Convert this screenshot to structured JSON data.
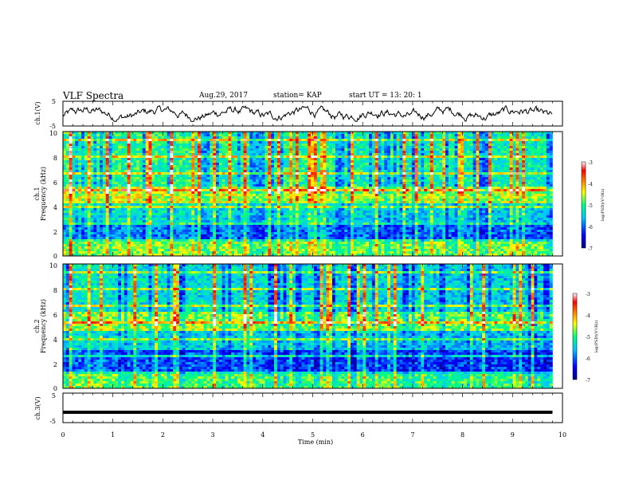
{
  "header": {
    "title": "VLF Spectra",
    "date": "Aug.29, 2017",
    "station": "station= KAP",
    "start": "start  UT =   13: 20: 1"
  },
  "chart_data": [
    {
      "type": "line",
      "ylabel": "ch.1(V)",
      "ylim": [
        -5,
        5
      ],
      "yticks": [
        "5",
        "-5"
      ],
      "xlim": [
        0,
        10
      ],
      "note_series": "noisy waveform around 0 V, amplitude roughly ±3 V"
    },
    {
      "type": "heatmap",
      "ylabel_top": "ch.1",
      "ylabel": "Frequency (kHz)",
      "ylim": [
        0,
        10
      ],
      "yticks": [
        "0",
        "2",
        "4",
        "6",
        "8",
        "10"
      ],
      "xlim": [
        0,
        10
      ],
      "colorbar": {
        "label": "log(PSD)(V²/Hz)",
        "range": [
          -7,
          -3
        ],
        "ticks": [
          "-3",
          "-4",
          "-5",
          "-6",
          "-7"
        ],
        "colors": [
          "#00008b",
          "#0000ff",
          "#00c8ff",
          "#00ff80",
          "#ffff00",
          "#ff8000",
          "#ff0000",
          "#ffffff"
        ]
      },
      "spectral_bands_khz": [
        {
          "low": 0,
          "high": 1.2,
          "level": -4.6
        },
        {
          "low": 1.2,
          "high": 2.6,
          "level": -5.8
        },
        {
          "low": 2.6,
          "high": 4.2,
          "level": -5.3
        },
        {
          "low": 4.2,
          "high": 5.6,
          "level": -4.4
        },
        {
          "low": 5.6,
          "high": 10,
          "level": -5.0
        }
      ]
    },
    {
      "type": "heatmap",
      "ylabel_top": "ch.2",
      "ylabel": "Frequency (kHz)",
      "ylim": [
        0,
        10
      ],
      "yticks": [
        "0",
        "2",
        "4",
        "6",
        "8",
        "10"
      ],
      "xlim": [
        0,
        10
      ],
      "colorbar": {
        "label": "log(PSD)(V²/Hz)",
        "range": [
          -7,
          -3
        ],
        "ticks": [
          "-3",
          "-4",
          "-5",
          "-6",
          "-7"
        ],
        "colors": [
          "#00008b",
          "#0000ff",
          "#00c8ff",
          "#00ff80",
          "#ffff00",
          "#ff8000",
          "#ff0000",
          "#ffffff"
        ]
      },
      "spectral_bands_khz": [
        {
          "low": 0,
          "high": 1.2,
          "level": -4.8
        },
        {
          "low": 1.2,
          "high": 3.0,
          "level": -6.0
        },
        {
          "low": 3.0,
          "high": 4.6,
          "level": -5.4
        },
        {
          "low": 4.6,
          "high": 6.2,
          "level": -4.6
        },
        {
          "low": 6.2,
          "high": 10,
          "level": -5.3
        }
      ]
    },
    {
      "type": "line",
      "ylabel": "ch.3(V)",
      "ylim": [
        -5,
        5
      ],
      "yticks": [
        "5",
        "-5"
      ],
      "xlim": [
        0,
        10
      ],
      "xlabel": "Time (min)",
      "xticks": [
        "0",
        "1",
        "2",
        "3",
        "4",
        "5",
        "6",
        "7",
        "8",
        "9",
        "10"
      ],
      "series": [
        {
          "x": [
            0,
            9.8
          ],
          "y": [
            -1.5,
            -1.5
          ]
        }
      ]
    }
  ]
}
